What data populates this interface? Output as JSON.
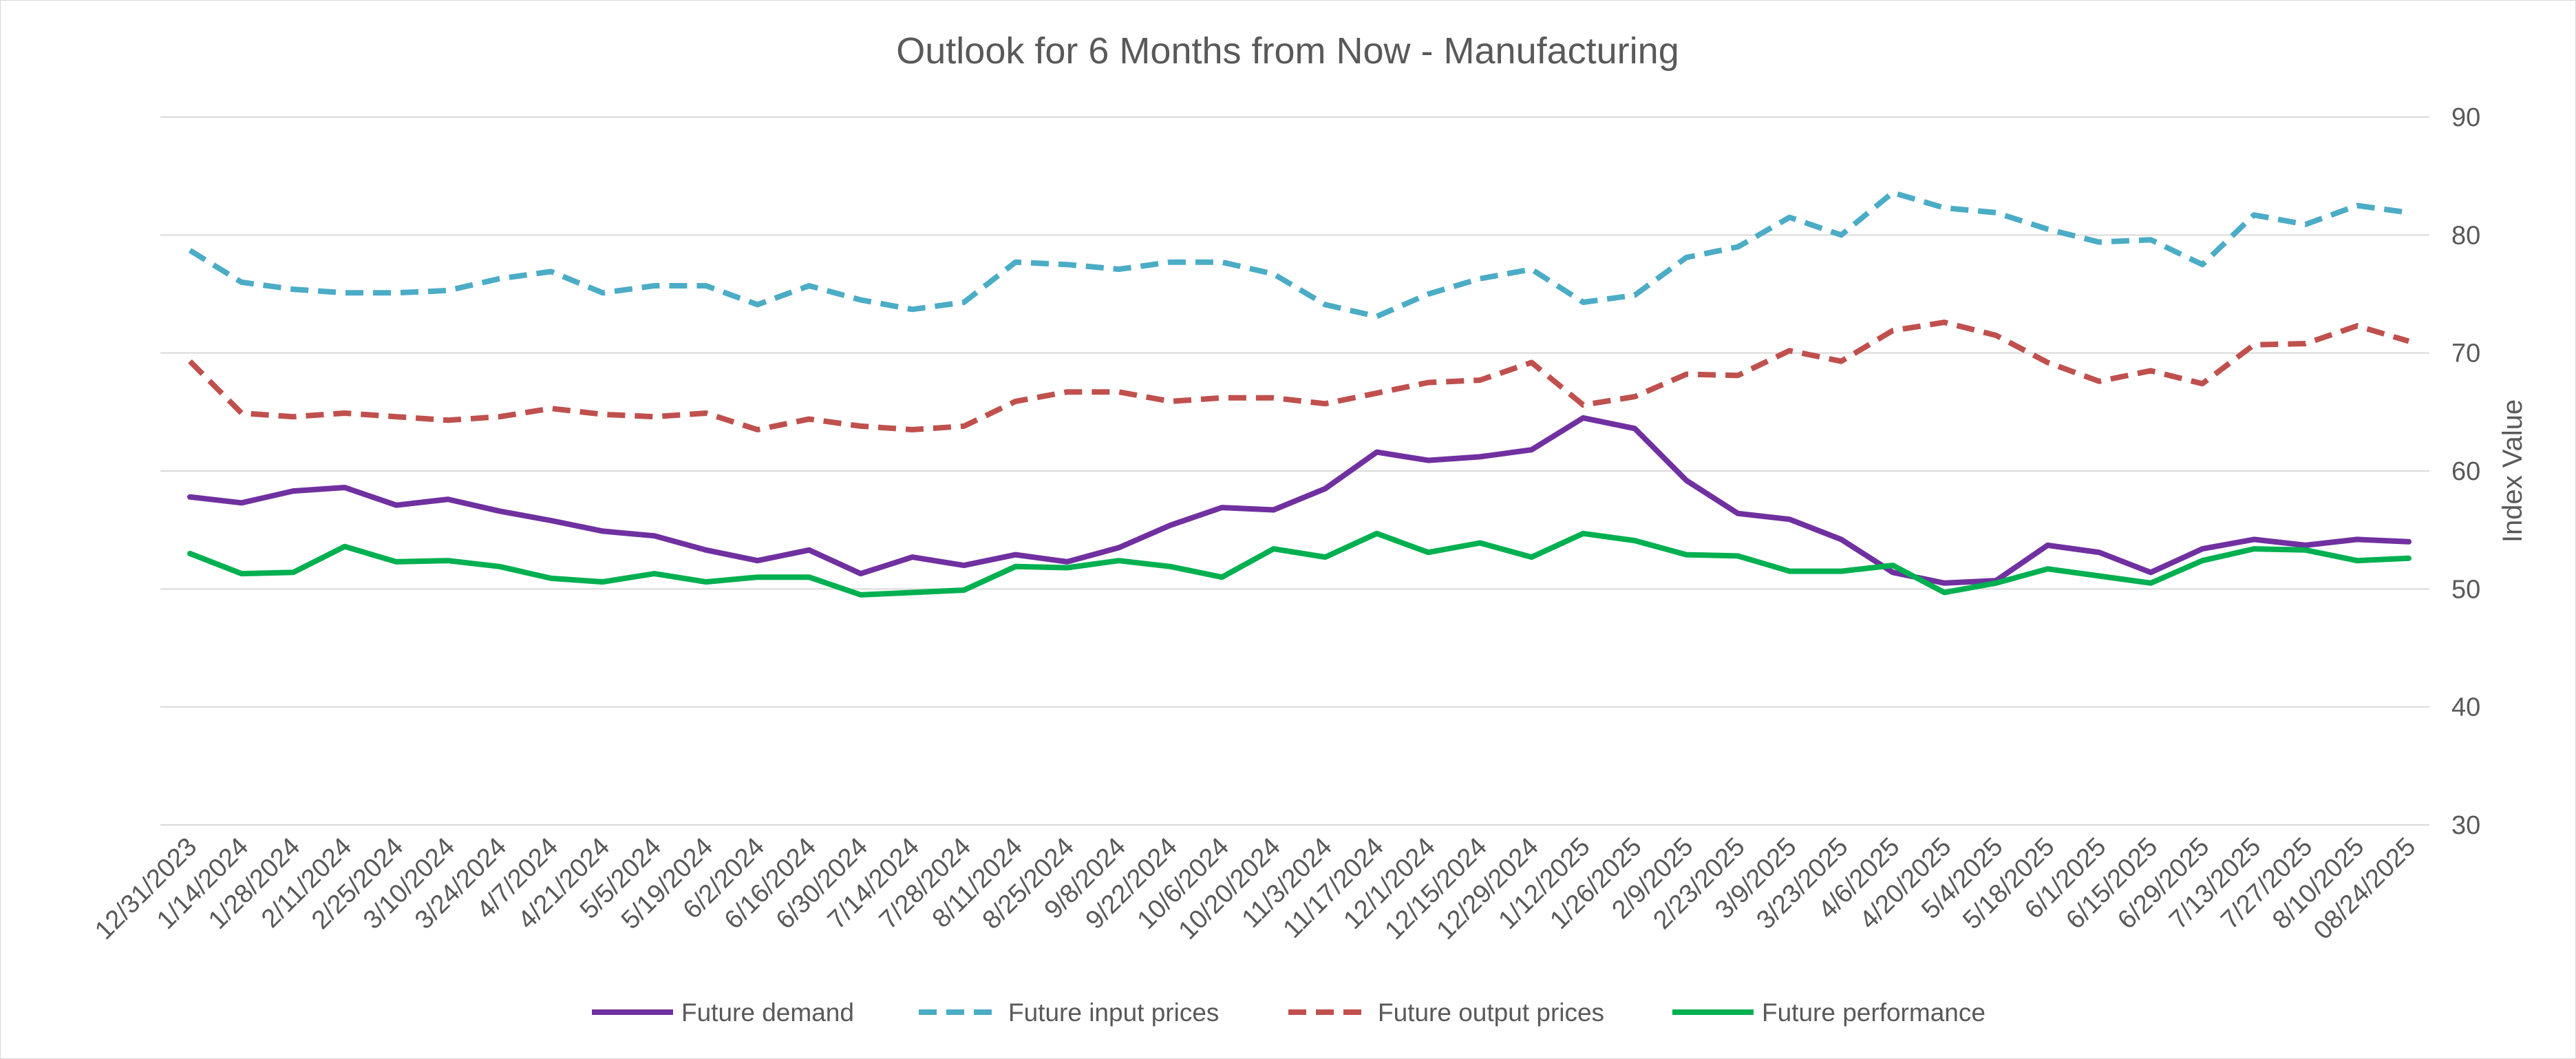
{
  "chart_data": {
    "type": "line",
    "title": "Outlook for 6 Months from Now - Manufacturing",
    "xlabel": "",
    "ylabel": "Index Value",
    "ylim": [
      30,
      90
    ],
    "yticks": [
      30,
      40,
      50,
      60,
      70,
      80,
      90
    ],
    "grid": true,
    "legend_position": "bottom",
    "categories": [
      "12/31/2023",
      "1/14/2024",
      "1/28/2024",
      "2/11/2024",
      "2/25/2024",
      "3/10/2024",
      "3/24/2024",
      "4/7/2024",
      "4/21/2024",
      "5/5/2024",
      "5/19/2024",
      "6/2/2024",
      "6/16/2024",
      "6/30/2024",
      "7/14/2024",
      "7/28/2024",
      "8/11/2024",
      "8/25/2024",
      "9/8/2024",
      "9/22/2024",
      "10/6/2024",
      "10/20/2024",
      "11/3/2024",
      "11/17/2024",
      "12/1/2024",
      "12/15/2024",
      "12/29/2024",
      "1/12/2025",
      "1/26/2025",
      "2/9/2025",
      "2/23/2025",
      "3/9/2025",
      "3/23/2025",
      "4/6/2025",
      "4/20/2025",
      "5/4/2025",
      "5/18/2025",
      "6/1/2025",
      "6/15/2025",
      "6/29/2025",
      "7/13/2025",
      "7/27/2025",
      "8/10/2025",
      "08/24/2025"
    ],
    "series": [
      {
        "name": "Future demand",
        "color": "#7030a0",
        "dash": "solid",
        "values": [
          57.8,
          57.3,
          58.3,
          58.6,
          57.1,
          57.6,
          56.6,
          55.8,
          54.9,
          54.5,
          53.3,
          52.4,
          53.3,
          51.3,
          52.7,
          52.0,
          52.9,
          52.3,
          53.5,
          55.4,
          56.9,
          56.7,
          58.5,
          61.6,
          60.9,
          61.2,
          61.8,
          64.5,
          63.6,
          59.2,
          56.4,
          55.9,
          54.2,
          51.4,
          50.5,
          50.7,
          53.7,
          53.1,
          51.4,
          53.4,
          54.2,
          53.7,
          54.2,
          54.0
        ]
      },
      {
        "name": "Future input prices",
        "color": "#4bacc6",
        "dash": "dashed",
        "values": [
          78.7,
          76.0,
          75.4,
          75.1,
          75.1,
          75.3,
          76.3,
          76.9,
          75.1,
          75.7,
          75.7,
          74.1,
          75.7,
          74.5,
          73.7,
          74.3,
          77.7,
          77.5,
          77.1,
          77.7,
          77.7,
          76.7,
          74.1,
          73.1,
          75.0,
          76.3,
          77.1,
          74.3,
          74.9,
          78.1,
          79.0,
          81.5,
          80.0,
          83.6,
          82.3,
          81.9,
          80.5,
          79.4,
          79.6,
          77.5,
          81.7,
          80.9,
          82.5,
          81.9
        ]
      },
      {
        "name": "Future output prices",
        "color": "#c0504d",
        "dash": "dashed",
        "values": [
          69.3,
          64.9,
          64.6,
          64.9,
          64.6,
          64.3,
          64.6,
          65.3,
          64.8,
          64.6,
          64.9,
          63.5,
          64.4,
          63.8,
          63.5,
          63.8,
          65.9,
          66.7,
          66.7,
          65.9,
          66.2,
          66.2,
          65.7,
          66.6,
          67.5,
          67.7,
          69.2,
          65.6,
          66.3,
          68.2,
          68.1,
          70.2,
          69.3,
          71.9,
          72.6,
          71.5,
          69.2,
          67.6,
          68.5,
          67.4,
          70.7,
          70.8,
          72.3,
          71.0
        ]
      },
      {
        "name": "Future performance",
        "color": "#00b050",
        "dash": "solid",
        "values": [
          53.0,
          51.3,
          51.4,
          53.6,
          52.3,
          52.4,
          51.9,
          50.9,
          50.6,
          51.3,
          50.6,
          51.0,
          51.0,
          49.5,
          49.7,
          49.9,
          51.9,
          51.8,
          52.4,
          51.9,
          51.0,
          53.4,
          52.7,
          54.7,
          53.1,
          53.9,
          52.7,
          54.7,
          54.1,
          52.9,
          52.8,
          51.5,
          51.5,
          52.0,
          49.7,
          50.5,
          51.7,
          51.1,
          50.5,
          52.4,
          53.4,
          53.3,
          52.4,
          52.6
        ]
      }
    ]
  }
}
